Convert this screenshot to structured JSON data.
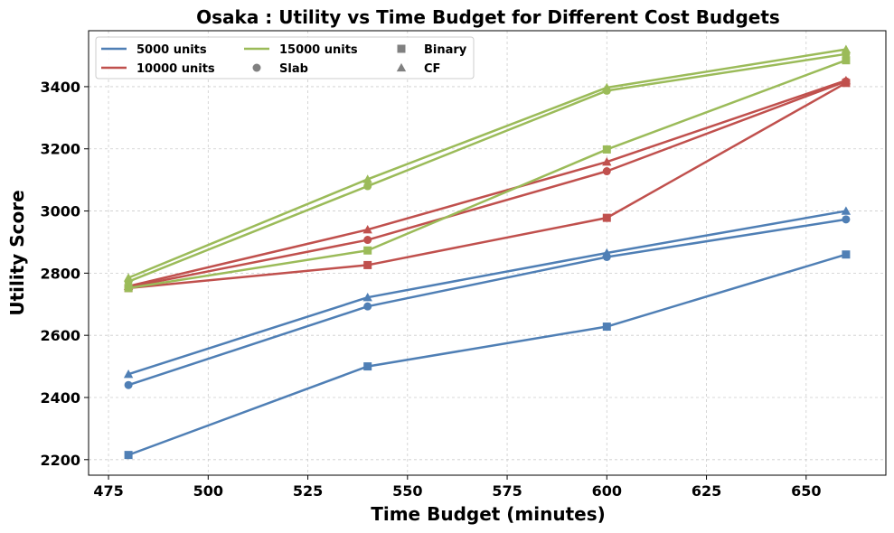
{
  "chart_data": {
    "type": "line",
    "title": "Osaka : Utility vs Time Budget for Different Cost Budgets",
    "xlabel": "Time Budget (minutes)",
    "ylabel": "Utility Score",
    "x": [
      480,
      540,
      600,
      660
    ],
    "xlim": [
      470,
      670
    ],
    "ylim": [
      2150,
      3580
    ],
    "xticks": [
      "475",
      "500",
      "525",
      "550",
      "575",
      "600",
      "625",
      "650"
    ],
    "yticks": [
      "2200",
      "2400",
      "2600",
      "2800",
      "3000",
      "3200",
      "3400"
    ],
    "grid": true,
    "legend_position": "top-left",
    "legend": {
      "cost_budgets": [
        {
          "name": "5000 units",
          "color": "#4f7fb5"
        },
        {
          "name": "10000 units",
          "color": "#c0504d"
        },
        {
          "name": "15000 units",
          "color": "#9bbb59"
        }
      ],
      "methods": [
        {
          "name": "Binary",
          "marker": "square"
        },
        {
          "name": "Slab",
          "marker": "circle"
        },
        {
          "name": "CF",
          "marker": "triangle"
        }
      ]
    },
    "series": [
      {
        "budget": "5000 units",
        "method": "Binary",
        "color": "#4f7fb5",
        "marker": "square",
        "values": [
          2215,
          2500,
          2628,
          2860
        ]
      },
      {
        "budget": "5000 units",
        "method": "Slab",
        "color": "#4f7fb5",
        "marker": "circle",
        "values": [
          2440,
          2693,
          2852,
          2973
        ]
      },
      {
        "budget": "5000 units",
        "method": "CF",
        "color": "#4f7fb5",
        "marker": "triangle",
        "values": [
          2475,
          2722,
          2865,
          3000
        ]
      },
      {
        "budget": "10000 units",
        "method": "Binary",
        "color": "#c0504d",
        "marker": "square",
        "values": [
          2752,
          2826,
          2978,
          3412
        ]
      },
      {
        "budget": "10000 units",
        "method": "Slab",
        "color": "#c0504d",
        "marker": "circle",
        "values": [
          2755,
          2907,
          3128,
          3417
        ]
      },
      {
        "budget": "10000 units",
        "method": "CF",
        "color": "#c0504d",
        "marker": "triangle",
        "values": [
          2758,
          2940,
          3158,
          3420
        ]
      },
      {
        "budget": "15000 units",
        "method": "Binary",
        "color": "#9bbb59",
        "marker": "square",
        "values": [
          2752,
          2873,
          3198,
          3485
        ]
      },
      {
        "budget": "15000 units",
        "method": "Slab",
        "color": "#9bbb59",
        "marker": "circle",
        "values": [
          2773,
          3080,
          3387,
          3505
        ]
      },
      {
        "budget": "15000 units",
        "method": "CF",
        "color": "#9bbb59",
        "marker": "triangle",
        "values": [
          2785,
          3102,
          3397,
          3520
        ]
      }
    ]
  }
}
